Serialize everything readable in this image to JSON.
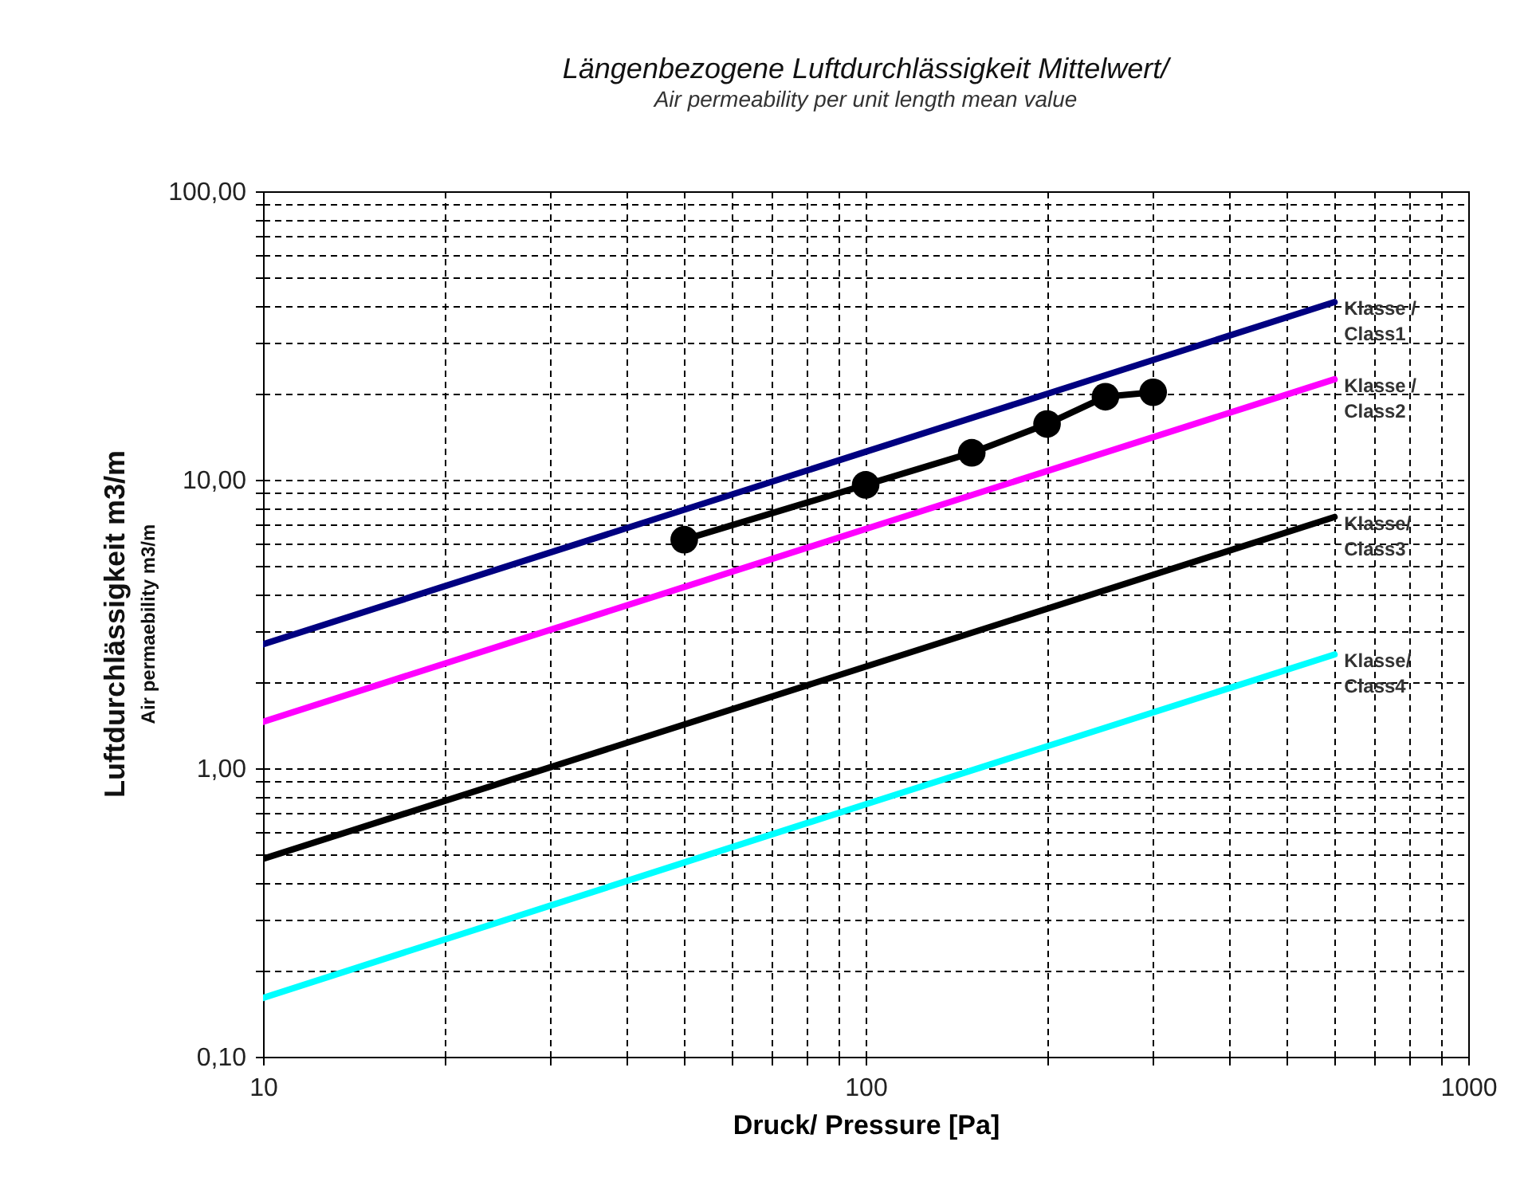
{
  "chart_data": {
    "type": "line",
    "title": "Längenbezogene Luftdurchlässigkeit Mittelwert/",
    "subtitle": "Air permeability per unit length mean value",
    "xlabel": "Druck/ Pressure [Pa]",
    "ylabel": [
      "Luftdurchlässigkeit m3/m",
      "Air permaebility m3/m"
    ],
    "log": "xy",
    "grid": true,
    "line_style": "solid",
    "xlim": [
      10,
      1000
    ],
    "xticks": [
      10,
      {
        "value": 20,
        "label": null
      },
      {
        "value": 30,
        "label": null
      },
      {
        "value": 40,
        "label": null
      },
      {
        "value": 50,
        "label": null
      },
      {
        "value": 60,
        "label": null
      },
      {
        "value": 70,
        "label": null
      },
      {
        "value": 80,
        "label": null
      },
      {
        "value": 90,
        "label": null
      },
      100,
      {
        "value": 200,
        "label": null
      },
      {
        "value": 300,
        "label": null
      },
      {
        "value": 400,
        "label": null
      },
      {
        "value": 500,
        "label": null
      },
      {
        "value": 600,
        "label": null
      },
      {
        "value": 700,
        "label": null
      },
      {
        "value": 800,
        "label": null
      },
      {
        "value": 900,
        "label": null
      },
      1000
    ],
    "ylim": [
      0.1,
      100
    ],
    "yticks": [
      {
        "value": 0.1,
        "label": "0,10"
      },
      {
        "value": 0.2,
        "label": null
      },
      {
        "value": 0.3,
        "label": null
      },
      {
        "value": 0.4,
        "label": null
      },
      {
        "value": 0.5,
        "label": null
      },
      {
        "value": 0.6,
        "label": null
      },
      {
        "value": 0.7,
        "label": null
      },
      {
        "value": 0.8,
        "label": null
      },
      {
        "value": 0.9,
        "label": null
      },
      {
        "value": 1,
        "label": "1,00"
      },
      {
        "value": 2,
        "label": null
      },
      {
        "value": 3,
        "label": null
      },
      {
        "value": 4,
        "label": null
      },
      {
        "value": 5,
        "label": null
      },
      {
        "value": 6,
        "label": null
      },
      {
        "value": 7,
        "label": null
      },
      {
        "value": 8,
        "label": null
      },
      {
        "value": 9,
        "label": null
      },
      {
        "value": 10,
        "label": "10,00"
      },
      {
        "value": 20,
        "label": null
      },
      {
        "value": 30,
        "label": null
      },
      {
        "value": 40,
        "label": null
      },
      {
        "value": 50,
        "label": null
      },
      {
        "value": 60,
        "label": null
      },
      {
        "value": 70,
        "label": null
      },
      {
        "value": 80,
        "label": null
      },
      {
        "value": 90,
        "label": null
      },
      {
        "value": 100,
        "label": "100,00"
      }
    ],
    "series": [
      {
        "name": "Klasse /\nClass1",
        "color": "#000080",
        "marker": "none",
        "x": [
          10,
          100,
          600
        ],
        "values": [
          2.69,
          12.5,
          41.3
        ]
      },
      {
        "name": "Klasse /\nClass2",
        "color": "#ff00ff",
        "marker": "none",
        "x": [
          10,
          100,
          600
        ],
        "values": [
          1.45,
          6.75,
          22.3
        ]
      },
      {
        "name": "Klasse/\nClass3",
        "color": "#000000",
        "marker": "none",
        "x": [
          10,
          100,
          600
        ],
        "values": [
          0.485,
          2.25,
          7.43
        ]
      },
      {
        "name": "Klasse/\nClass4",
        "color": "#00ffff",
        "marker": "none",
        "x": [
          10,
          100,
          600
        ],
        "values": [
          0.16,
          0.75,
          2.48
        ]
      },
      {
        "color": "#000000",
        "marker": "circle",
        "x": [
          50,
          100,
          150,
          200,
          250,
          300
        ],
        "values": [
          6.2,
          9.6,
          12.4,
          15.6,
          19.4,
          20.1
        ]
      }
    ]
  }
}
